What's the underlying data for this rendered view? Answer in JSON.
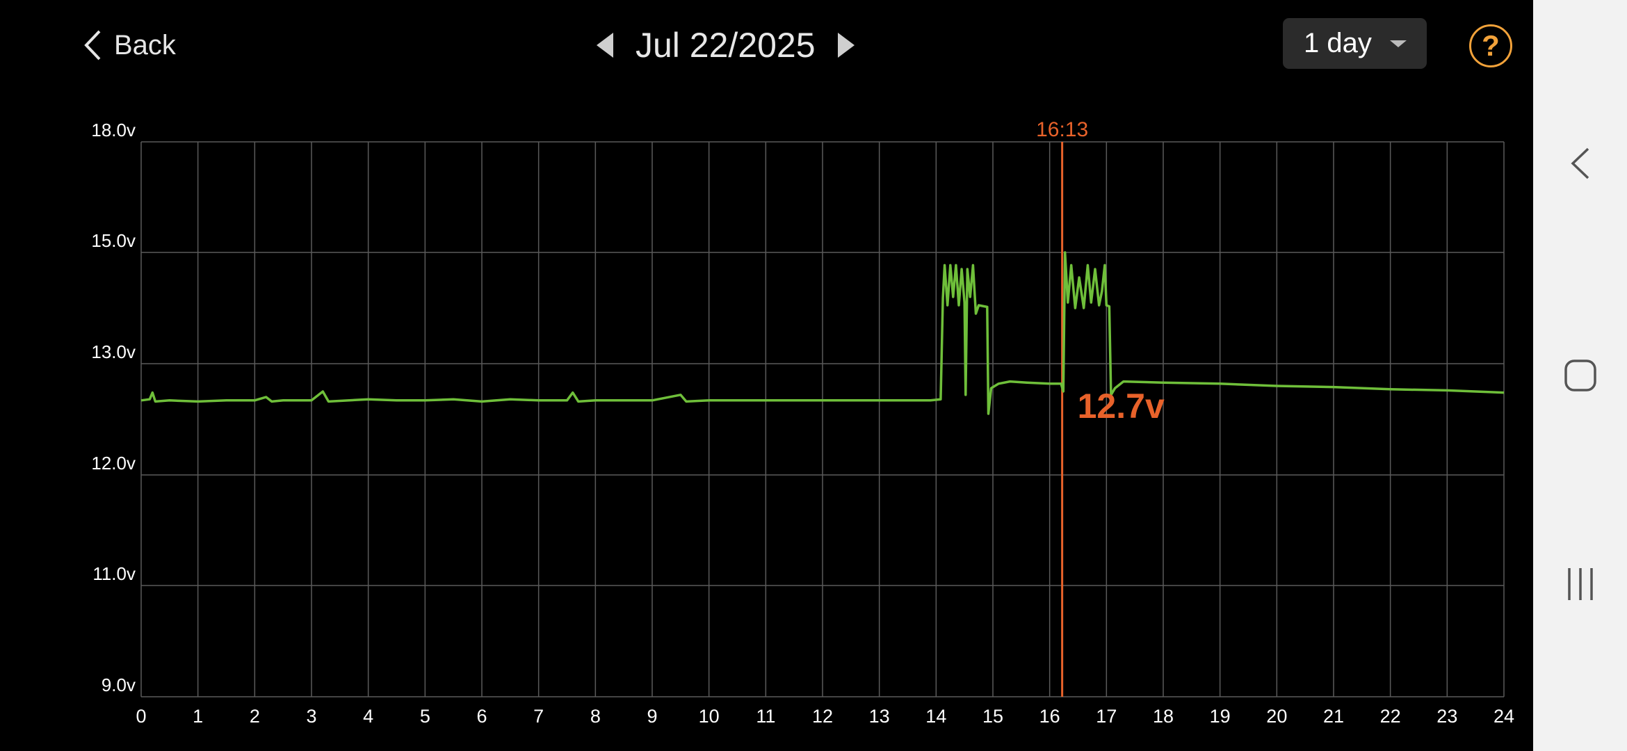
{
  "header": {
    "back_label": "Back",
    "date": "Jul 22/2025",
    "range": "1 day",
    "help_glyph": "?"
  },
  "colors": {
    "line": "#6fbf3a",
    "cursor": "#e8622a",
    "grid": "#5a5a5a",
    "accent": "#f2a23a"
  },
  "chart_data": {
    "type": "line",
    "title": "",
    "xlabel": "",
    "ylabel": "",
    "xlim": [
      0,
      24
    ],
    "x_ticks": [
      "0",
      "1",
      "2",
      "3",
      "4",
      "5",
      "6",
      "7",
      "8",
      "9",
      "10",
      "11",
      "12",
      "13",
      "14",
      "15",
      "16",
      "17",
      "18",
      "19",
      "20",
      "21",
      "22",
      "23",
      "24"
    ],
    "y_ticks": [
      {
        "value": 9.0,
        "label": "9.0v"
      },
      {
        "value": 11.0,
        "label": "11.0v"
      },
      {
        "value": 12.0,
        "label": "12.0v"
      },
      {
        "value": 13.0,
        "label": "13.0v"
      },
      {
        "value": 15.0,
        "label": "15.0v"
      },
      {
        "value": 18.0,
        "label": "18.0v"
      }
    ],
    "grid": true,
    "cursor": {
      "x": 16.22,
      "time_label": "16:13",
      "value_label": "12.7v"
    },
    "series": [
      {
        "points": [
          [
            0.0,
            12.67
          ],
          [
            0.15,
            12.68
          ],
          [
            0.2,
            12.74
          ],
          [
            0.25,
            12.66
          ],
          [
            0.5,
            12.67
          ],
          [
            1.0,
            12.66
          ],
          [
            1.5,
            12.67
          ],
          [
            2.0,
            12.67
          ],
          [
            2.2,
            12.7
          ],
          [
            2.3,
            12.66
          ],
          [
            2.5,
            12.67
          ],
          [
            3.0,
            12.67
          ],
          [
            3.2,
            12.75
          ],
          [
            3.3,
            12.66
          ],
          [
            4.0,
            12.68
          ],
          [
            4.5,
            12.67
          ],
          [
            5.0,
            12.67
          ],
          [
            5.5,
            12.68
          ],
          [
            6.0,
            12.66
          ],
          [
            6.5,
            12.68
          ],
          [
            7.0,
            12.67
          ],
          [
            7.5,
            12.67
          ],
          [
            7.6,
            12.74
          ],
          [
            7.7,
            12.66
          ],
          [
            8.0,
            12.67
          ],
          [
            8.5,
            12.67
          ],
          [
            9.0,
            12.67
          ],
          [
            9.5,
            12.72
          ],
          [
            9.6,
            12.66
          ],
          [
            10.0,
            12.67
          ],
          [
            11.0,
            12.67
          ],
          [
            12.0,
            12.67
          ],
          [
            13.0,
            12.67
          ],
          [
            13.9,
            12.67
          ],
          [
            14.08,
            12.68
          ],
          [
            14.12,
            14.18
          ],
          [
            14.15,
            14.77
          ],
          [
            14.2,
            14.05
          ],
          [
            14.25,
            14.77
          ],
          [
            14.3,
            14.2
          ],
          [
            14.35,
            14.77
          ],
          [
            14.4,
            14.05
          ],
          [
            14.45,
            14.7
          ],
          [
            14.5,
            14.1
          ],
          [
            14.52,
            12.72
          ],
          [
            14.55,
            14.7
          ],
          [
            14.6,
            14.2
          ],
          [
            14.65,
            14.77
          ],
          [
            14.7,
            13.9
          ],
          [
            14.75,
            14.05
          ],
          [
            14.9,
            14.02
          ],
          [
            14.92,
            12.55
          ],
          [
            14.97,
            12.78
          ],
          [
            15.1,
            12.82
          ],
          [
            15.3,
            12.84
          ],
          [
            15.6,
            12.83
          ],
          [
            16.0,
            12.82
          ],
          [
            16.2,
            12.82
          ],
          [
            16.24,
            12.75
          ],
          [
            16.27,
            15.0
          ],
          [
            16.32,
            14.1
          ],
          [
            16.38,
            14.77
          ],
          [
            16.45,
            14.0
          ],
          [
            16.52,
            14.55
          ],
          [
            16.6,
            14.0
          ],
          [
            16.67,
            14.77
          ],
          [
            16.73,
            14.1
          ],
          [
            16.8,
            14.7
          ],
          [
            16.87,
            14.05
          ],
          [
            16.92,
            14.3
          ],
          [
            16.97,
            14.77
          ],
          [
            17.0,
            14.05
          ],
          [
            17.05,
            14.03
          ],
          [
            17.08,
            12.72
          ],
          [
            17.15,
            12.78
          ],
          [
            17.3,
            12.84
          ],
          [
            18.0,
            12.83
          ],
          [
            19.0,
            12.82
          ],
          [
            20.0,
            12.8
          ],
          [
            21.0,
            12.79
          ],
          [
            22.0,
            12.77
          ],
          [
            23.0,
            12.76
          ],
          [
            24.0,
            12.74
          ]
        ]
      }
    ]
  },
  "navbar": {
    "items": [
      {
        "name": "nav-back-button",
        "icon": "chevron-left-icon"
      },
      {
        "name": "nav-home-button",
        "icon": "rounded-square-icon"
      },
      {
        "name": "nav-recents-button",
        "icon": "three-bars-icon"
      }
    ]
  }
}
